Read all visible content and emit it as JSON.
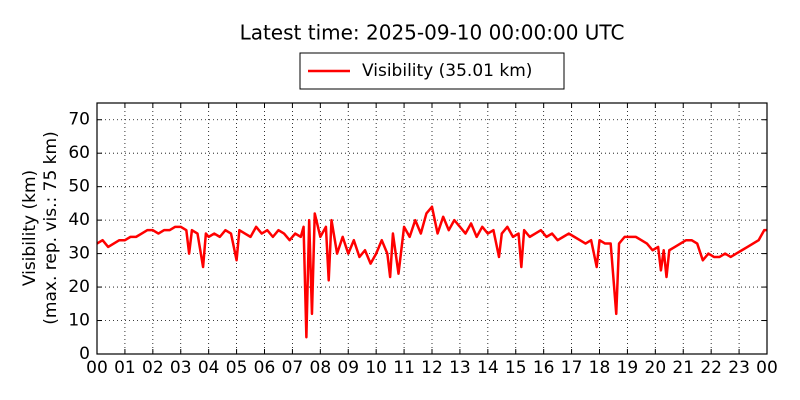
{
  "chart_data": {
    "type": "line",
    "title": "Latest time: 2025-09-10 00:00:00 UTC",
    "ylabel": [
      "Visibility (km)",
      "(max. rep. vis.: 75 km)"
    ],
    "x": [
      0,
      0.2,
      0.4,
      0.6,
      0.8,
      1.0,
      1.2,
      1.4,
      1.6,
      1.8,
      2.0,
      2.2,
      2.4,
      2.6,
      2.8,
      3.0,
      3.2,
      3.3,
      3.4,
      3.6,
      3.8,
      3.9,
      4.0,
      4.2,
      4.4,
      4.6,
      4.8,
      5.0,
      5.1,
      5.3,
      5.5,
      5.7,
      5.9,
      6.1,
      6.3,
      6.5,
      6.7,
      6.9,
      7.1,
      7.3,
      7.4,
      7.5,
      7.6,
      7.7,
      7.8,
      8.0,
      8.2,
      8.3,
      8.4,
      8.6,
      8.8,
      9.0,
      9.2,
      9.4,
      9.6,
      9.8,
      10.0,
      10.2,
      10.4,
      10.5,
      10.6,
      10.8,
      11.0,
      11.2,
      11.4,
      11.6,
      11.8,
      12.0,
      12.2,
      12.4,
      12.6,
      12.8,
      13.0,
      13.2,
      13.4,
      13.6,
      13.8,
      14.0,
      14.2,
      14.4,
      14.5,
      14.7,
      14.9,
      15.1,
      15.2,
      15.3,
      15.5,
      15.7,
      15.9,
      16.1,
      16.3,
      16.5,
      16.7,
      16.9,
      17.1,
      17.3,
      17.5,
      17.7,
      17.9,
      18.0,
      18.2,
      18.4,
      18.6,
      18.7,
      18.9,
      19.1,
      19.3,
      19.5,
      19.7,
      19.9,
      20.1,
      20.2,
      20.3,
      20.4,
      20.5,
      20.7,
      20.9,
      21.1,
      21.3,
      21.5,
      21.7,
      21.9,
      22.1,
      22.3,
      22.5,
      22.7,
      22.9,
      23.1,
      23.3,
      23.5,
      23.7,
      23.9,
      24.0
    ],
    "series": [
      {
        "name": "Visibility (35.01 km)",
        "color": "#ff0000",
        "values": [
          33,
          34,
          32,
          33,
          34,
          34,
          35,
          35,
          36,
          37,
          37,
          36,
          37,
          37,
          38,
          38,
          37,
          30,
          37,
          36,
          26,
          36,
          35,
          36,
          35,
          37,
          36,
          28,
          37,
          36,
          35,
          38,
          36,
          37,
          35,
          37,
          36,
          34,
          36,
          35,
          38,
          5,
          40,
          12,
          42,
          35,
          38,
          22,
          40,
          30,
          35,
          30,
          34,
          29,
          31,
          27,
          30,
          34,
          30,
          23,
          36,
          24,
          38,
          35,
          40,
          36,
          42,
          44,
          36,
          41,
          37,
          40,
          38,
          36,
          39,
          35,
          38,
          36,
          37,
          29,
          36,
          38,
          35,
          36,
          26,
          37,
          35,
          36,
          37,
          35,
          36,
          34,
          35,
          36,
          35,
          34,
          33,
          34,
          26,
          34,
          33,
          33,
          12,
          33,
          35,
          35,
          35,
          34,
          33,
          31,
          32,
          25,
          31,
          23,
          31,
          32,
          33,
          34,
          34,
          33,
          28,
          30,
          29,
          29,
          30,
          29,
          30,
          31,
          32,
          33,
          34,
          37,
          37
        ]
      }
    ],
    "xlim": [
      0,
      24
    ],
    "xticks": [
      {
        "value": 0,
        "label": "00"
      },
      {
        "value": 1,
        "label": "01"
      },
      {
        "value": 2,
        "label": "02"
      },
      {
        "value": 3,
        "label": "03"
      },
      {
        "value": 4,
        "label": "04"
      },
      {
        "value": 5,
        "label": "05"
      },
      {
        "value": 6,
        "label": "06"
      },
      {
        "value": 7,
        "label": "07"
      },
      {
        "value": 8,
        "label": "08"
      },
      {
        "value": 9,
        "label": "09"
      },
      {
        "value": 10,
        "label": "10"
      },
      {
        "value": 11,
        "label": "11"
      },
      {
        "value": 12,
        "label": "12"
      },
      {
        "value": 13,
        "label": "13"
      },
      {
        "value": 14,
        "label": "14"
      },
      {
        "value": 15,
        "label": "15"
      },
      {
        "value": 16,
        "label": "16"
      },
      {
        "value": 17,
        "label": "17"
      },
      {
        "value": 18,
        "label": "18"
      },
      {
        "value": 19,
        "label": "19"
      },
      {
        "value": 20,
        "label": "20"
      },
      {
        "value": 21,
        "label": "21"
      },
      {
        "value": 22,
        "label": "22"
      },
      {
        "value": 23,
        "label": "23"
      },
      {
        "value": 24,
        "label": "00"
      }
    ],
    "ylim": [
      0,
      75
    ],
    "yticks": [
      0,
      10,
      20,
      30,
      40,
      50,
      60,
      70
    ],
    "grid": true,
    "legend": "top"
  }
}
